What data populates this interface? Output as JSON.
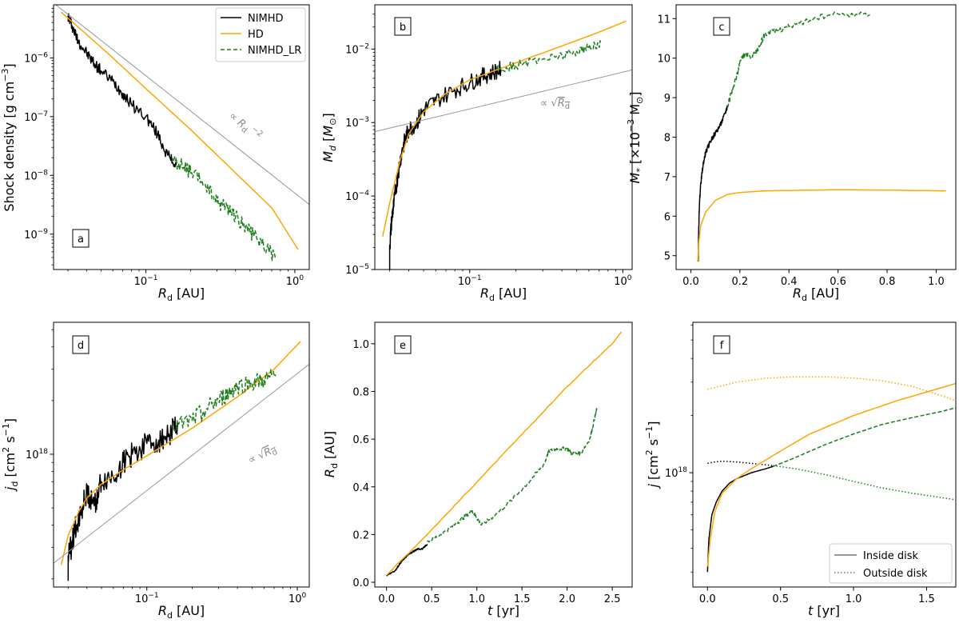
{
  "colors": {
    "nimhd": "#000000",
    "hd": "#ffa500",
    "lr": "#1a7f1a",
    "ref": "#999999"
  },
  "legend": [
    "NIMHD",
    "HD",
    "NIMHD_LR"
  ],
  "legend_f": [
    "Inside disk",
    "Outside disk"
  ],
  "chart_data": [
    {
      "panel": "a",
      "type": "line",
      "xscale": "log",
      "yscale": "log",
      "xlabel": "R_d [AU]",
      "ylabel": "Shock density [g cm^-3]",
      "xlim": [
        0.024,
        1.25
      ],
      "ylim": [
        2.5e-10,
        8e-06
      ],
      "xticks": [
        {
          "v": 0.1,
          "label": "10^-1"
        },
        {
          "v": 1,
          "label": "10^0"
        }
      ],
      "yticks": [
        {
          "v": 1e-09,
          "label": "10^-9"
        },
        {
          "v": 1e-08,
          "label": "10^-8"
        },
        {
          "v": 1e-07,
          "label": "10^-7"
        },
        {
          "v": 1e-06,
          "label": "10^-6"
        }
      ],
      "annotation": "∝ R_d^-2",
      "series": [
        {
          "name": "NIMHD",
          "style": "solid",
          "noise": 0.1,
          "x": [
            0.03,
            0.032,
            0.035,
            0.04,
            0.045,
            0.05,
            0.06,
            0.07,
            0.08,
            0.1,
            0.12,
            0.14,
            0.16
          ],
          "y": [
            5.2e-06,
            3.5e-06,
            2e-06,
            1.2e-06,
            8e-07,
            6e-07,
            4e-07,
            2.5e-07,
            1.6e-07,
            1e-07,
            5e-08,
            2.2e-08,
            1.5e-08
          ]
        },
        {
          "name": "HD",
          "style": "solid",
          "noise": 0.0,
          "x": [
            0.027,
            0.04,
            0.06,
            0.1,
            0.2,
            0.4,
            0.7,
            1.05
          ],
          "y": [
            6e-06,
            2.5e-06,
            1e-06,
            3e-07,
            6e-08,
            1.1e-08,
            2.8e-09,
            5.5e-10
          ]
        },
        {
          "name": "NIMHD_LR",
          "style": "dashed",
          "noise": 0.12,
          "x": [
            0.15,
            0.18,
            0.2,
            0.25,
            0.3,
            0.35,
            0.4,
            0.5,
            0.6,
            0.75
          ],
          "y": [
            1.8e-08,
            1.4e-08,
            1.1e-08,
            7e-09,
            3.5e-09,
            3e-09,
            2e-09,
            1.1e-09,
            7e-10,
            3.8e-10
          ]
        },
        {
          "name": "∝ R_d^-2",
          "style": "ref",
          "noise": 0.0,
          "x": [
            0.024,
            1.25
          ],
          "y": [
            8.6e-06,
            3.2e-09
          ]
        }
      ]
    },
    {
      "panel": "b",
      "type": "line",
      "xscale": "log",
      "yscale": "log",
      "xlabel": "R_d [AU]",
      "ylabel": "M_d [M_⊙]",
      "xlim": [
        0.024,
        1.15
      ],
      "ylim": [
        1e-05,
        0.04
      ],
      "xticks": [
        {
          "v": 0.1,
          "label": "10^-1"
        },
        {
          "v": 1,
          "label": "10^0"
        }
      ],
      "yticks": [
        {
          "v": 1e-05,
          "label": "10^-5"
        },
        {
          "v": 0.0001,
          "label": "10^-4"
        },
        {
          "v": 0.001,
          "label": "10^-3"
        },
        {
          "v": 0.01,
          "label": "10^-2"
        }
      ],
      "annotation": "∝ √R_d",
      "series": [
        {
          "name": "NIMHD",
          "style": "solid",
          "noise": 0.12,
          "x": [
            0.03,
            0.03,
            0.031,
            0.032,
            0.034,
            0.036,
            0.038,
            0.04,
            0.045,
            0.05,
            0.06,
            0.08,
            0.1,
            0.12,
            0.14,
            0.16
          ],
          "y": [
            1e-05,
            2e-05,
            5e-05,
            8e-05,
            0.0002,
            0.0004,
            0.0006,
            0.0008,
            0.001,
            0.0015,
            0.002,
            0.0028,
            0.0035,
            0.0042,
            0.0048,
            0.0053
          ]
        },
        {
          "name": "HD",
          "style": "solid",
          "noise": 0.0,
          "x": [
            0.027,
            0.03,
            0.035,
            0.04,
            0.05,
            0.07,
            0.1,
            0.2,
            0.4,
            0.7,
            1.05
          ],
          "y": [
            2.8e-05,
            8e-05,
            0.0003,
            0.0007,
            0.0014,
            0.0025,
            0.0038,
            0.0065,
            0.011,
            0.017,
            0.024
          ]
        },
        {
          "name": "NIMHD_LR",
          "style": "dashed",
          "noise": 0.06,
          "x": [
            0.15,
            0.2,
            0.3,
            0.4,
            0.5,
            0.6,
            0.72
          ],
          "y": [
            0.0053,
            0.006,
            0.0073,
            0.0083,
            0.0093,
            0.0105,
            0.0117
          ]
        },
        {
          "name": "∝ √R_d",
          "style": "ref",
          "noise": 0.0,
          "x": [
            0.024,
            1.15
          ],
          "y": [
            0.00075,
            0.0052
          ]
        }
      ]
    },
    {
      "panel": "c",
      "type": "line",
      "xscale": "linear",
      "yscale": "linear",
      "xlabel": "R_d [AU]",
      "ylabel": "M_* [×10^-3 M_⊙]",
      "xlim": [
        -0.06,
        1.08
      ],
      "ylim": [
        4.65,
        11.35
      ],
      "xticks": [
        {
          "v": 0,
          "label": "0.0"
        },
        {
          "v": 0.2,
          "label": "0.2"
        },
        {
          "v": 0.4,
          "label": "0.4"
        },
        {
          "v": 0.6,
          "label": "0.6"
        },
        {
          "v": 0.8,
          "label": "0.8"
        },
        {
          "v": 1.0,
          "label": "1.0"
        }
      ],
      "yticks": [
        {
          "v": 5,
          "label": "5"
        },
        {
          "v": 6,
          "label": "6"
        },
        {
          "v": 7,
          "label": "7"
        },
        {
          "v": 8,
          "label": "8"
        },
        {
          "v": 9,
          "label": "9"
        },
        {
          "v": 10,
          "label": "10"
        },
        {
          "v": 11,
          "label": "11"
        }
      ],
      "series": [
        {
          "name": "NIMHD",
          "style": "solid",
          "noise": 0.06,
          "x": [
            0.03,
            0.032,
            0.035,
            0.04,
            0.05,
            0.06,
            0.08,
            0.1,
            0.12,
            0.14,
            0.15
          ],
          "y": [
            4.85,
            5.6,
            6.3,
            6.8,
            7.3,
            7.6,
            7.9,
            8.1,
            8.3,
            8.6,
            8.8
          ]
        },
        {
          "name": "HD",
          "style": "solid",
          "noise": 0.0,
          "x": [
            0.028,
            0.032,
            0.04,
            0.06,
            0.1,
            0.15,
            0.2,
            0.3,
            0.4,
            0.6,
            0.8,
            1.04
          ],
          "y": [
            4.85,
            5.3,
            5.75,
            6.1,
            6.4,
            6.55,
            6.6,
            6.64,
            6.65,
            6.67,
            6.66,
            6.64
          ]
        },
        {
          "name": "NIMHD_LR",
          "style": "dashed",
          "noise": 0.07,
          "x": [
            0.15,
            0.17,
            0.19,
            0.2,
            0.22,
            0.25,
            0.28,
            0.3,
            0.35,
            0.4,
            0.5,
            0.6,
            0.73
          ],
          "y": [
            8.8,
            9.2,
            9.6,
            9.9,
            10.1,
            10.0,
            10.3,
            10.6,
            10.7,
            10.8,
            11.0,
            11.12,
            11.1
          ]
        }
      ]
    },
    {
      "panel": "d",
      "type": "line",
      "xscale": "log",
      "yscale": "log",
      "xlabel": "R_d [AU]",
      "ylabel": "j_d [cm^2 s^-1]",
      "xlim": [
        0.024,
        1.2
      ],
      "ylim": [
        1.8e+17,
        5.5e+18
      ],
      "xticks": [
        {
          "v": 0.1,
          "label": "10^-1"
        },
        {
          "v": 1,
          "label": "10^0"
        }
      ],
      "yticks": [
        {
          "v": 1e+18,
          "label": "10^18"
        }
      ],
      "annotation": "∝ √R_d",
      "series": [
        {
          "name": "NIMHD",
          "style": "solid",
          "noise": 0.07,
          "x": [
            0.03,
            0.03,
            0.032,
            0.034,
            0.037,
            0.04,
            0.045,
            0.05,
            0.06,
            0.07,
            0.08,
            0.1,
            0.12,
            0.14,
            0.16
          ],
          "y": [
            2e+17,
            2.6e+17,
            3.2e+17,
            4e+17,
            5e+17,
            6e+17,
            5.3e+17,
            7e+17,
            7.5e+17,
            9e+17,
            1e+18,
            1.15e+18,
            1.2e+18,
            1.3e+18,
            1.5e+18
          ]
        },
        {
          "name": "HD",
          "style": "solid",
          "noise": 0.0,
          "x": [
            0.027,
            0.03,
            0.035,
            0.04,
            0.05,
            0.07,
            0.1,
            0.2,
            0.4,
            0.7,
            1.05
          ],
          "y": [
            2.4e+17,
            3.5e+17,
            4.7e+17,
            5.7e+17,
            6.8e+17,
            8.2e+17,
            9.8e+17,
            1.4e+18,
            2.1e+18,
            3e+18,
            4.3e+18
          ]
        },
        {
          "name": "NIMHD_LR",
          "style": "dashed",
          "noise": 0.05,
          "x": [
            0.15,
            0.2,
            0.25,
            0.3,
            0.35,
            0.4,
            0.5,
            0.6,
            0.72
          ],
          "y": [
            1.4e+18,
            1.55e+18,
            1.8e+18,
            2e+18,
            2.2e+18,
            2.4e+18,
            2.5e+18,
            2.6e+18,
            2.75e+18
          ]
        },
        {
          "name": "∝ √R_d",
          "style": "ref",
          "noise": 0.0,
          "x": [
            0.024,
            1.2
          ],
          "y": [
            2.45e+17,
            3.2e+18
          ]
        }
      ]
    },
    {
      "panel": "e",
      "type": "line",
      "xscale": "linear",
      "yscale": "linear",
      "xlabel": "t [yr]",
      "ylabel": "R_d [AU]",
      "xlim": [
        -0.13,
        2.72
      ],
      "ylim": [
        -0.02,
        1.09
      ],
      "xticks": [
        {
          "v": 0,
          "label": "0.0"
        },
        {
          "v": 0.5,
          "label": "0.5"
        },
        {
          "v": 1.0,
          "label": "1.0"
        },
        {
          "v": 1.5,
          "label": "1.5"
        },
        {
          "v": 2.0,
          "label": "2.0"
        },
        {
          "v": 2.5,
          "label": "2.5"
        }
      ],
      "yticks": [
        {
          "v": 0,
          "label": "0.0"
        },
        {
          "v": 0.2,
          "label": "0.2"
        },
        {
          "v": 0.4,
          "label": "0.4"
        },
        {
          "v": 0.6,
          "label": "0.6"
        },
        {
          "v": 0.8,
          "label": "0.8"
        },
        {
          "v": 1.0,
          "label": "1.0"
        }
      ],
      "series": [
        {
          "name": "NIMHD",
          "style": "solid",
          "noise": 0.004,
          "x": [
            0.0,
            0.1,
            0.15,
            0.2,
            0.25,
            0.3,
            0.35,
            0.4,
            0.45
          ],
          "y": [
            0.03,
            0.05,
            0.08,
            0.1,
            0.12,
            0.13,
            0.14,
            0.14,
            0.16
          ]
        },
        {
          "name": "HD",
          "style": "solid",
          "noise": 0.002,
          "x": [
            0.0,
            0.5,
            1.0,
            1.5,
            2.0,
            2.3,
            2.5,
            2.6
          ],
          "y": [
            0.03,
            0.22,
            0.42,
            0.62,
            0.82,
            0.93,
            1.0,
            1.05
          ]
        },
        {
          "name": "NIMHD_LR",
          "style": "dashed",
          "noise": 0.008,
          "x": [
            0.45,
            0.6,
            0.75,
            0.85,
            0.95,
            1.0,
            1.05,
            1.2,
            1.4,
            1.6,
            1.75,
            1.8,
            1.9,
            2.0,
            2.05,
            2.15,
            2.25,
            2.3,
            2.33
          ],
          "y": [
            0.17,
            0.2,
            0.24,
            0.27,
            0.3,
            0.27,
            0.24,
            0.28,
            0.35,
            0.43,
            0.5,
            0.55,
            0.56,
            0.56,
            0.54,
            0.54,
            0.6,
            0.68,
            0.73
          ]
        }
      ]
    },
    {
      "panel": "f",
      "type": "line",
      "xscale": "linear",
      "yscale": "log",
      "xlabel": "t [yr]",
      "ylabel": "j [cm^2 s^-1]",
      "xlim": [
        -0.1,
        1.7
      ],
      "ylim": [
        2.5e+17,
        6.2e+18
      ],
      "xticks": [
        {
          "v": 0,
          "label": "0.0"
        },
        {
          "v": 0.5,
          "label": "0.5"
        },
        {
          "v": 1.0,
          "label": "1.0"
        },
        {
          "v": 1.5,
          "label": "1.5"
        }
      ],
      "yticks": [
        {
          "v": 1e+18,
          "label": "10^18"
        }
      ],
      "series": [
        {
          "name": "NIMHD inside",
          "color": "nimhd",
          "style": "solid",
          "noise": 0.0,
          "x": [
            0.0,
            0.01,
            0.03,
            0.06,
            0.1,
            0.15,
            0.2,
            0.3,
            0.4,
            0.45
          ],
          "y": [
            3e+17,
            4.5e+17,
            6e+17,
            7e+17,
            8e+17,
            8.8e+17,
            9.3e+17,
            1e+18,
            1.05e+18,
            1.08e+18
          ]
        },
        {
          "name": "NIMHD outside",
          "color": "nimhd",
          "style": "dotted",
          "noise": 0.0,
          "x": [
            0.0,
            0.05,
            0.1,
            0.2,
            0.3,
            0.4,
            0.45
          ],
          "y": [
            1.12e+18,
            1.14e+18,
            1.15e+18,
            1.14e+18,
            1.12e+18,
            1.1e+18,
            1.09e+18
          ]
        },
        {
          "name": "HD inside",
          "color": "hd",
          "style": "solid",
          "noise": 0.0,
          "x": [
            0.0,
            0.02,
            0.05,
            0.1,
            0.2,
            0.3,
            0.5,
            0.7,
            1.0,
            1.3,
            1.6,
            1.7
          ],
          "y": [
            3.2e+17,
            4.5e+17,
            6.2e+17,
            7.8e+17,
            9.3e+17,
            1.05e+18,
            1.3e+18,
            1.6e+18,
            2e+18,
            2.4e+18,
            2.8e+18,
            2.95e+18
          ]
        },
        {
          "name": "HD outside",
          "color": "hd",
          "style": "dotted",
          "noise": 0.0,
          "x": [
            0.0,
            0.2,
            0.4,
            0.6,
            0.8,
            1.0,
            1.2,
            1.4,
            1.6,
            1.7
          ],
          "y": [
            2.75e+18,
            3e+18,
            3.15e+18,
            3.2e+18,
            3.2e+18,
            3.15e+18,
            3.05e+18,
            2.85e+18,
            2.55e+18,
            2.4e+18
          ]
        },
        {
          "name": "NIMHD_LR inside",
          "color": "lr",
          "style": "dashed",
          "noise": 0.0,
          "x": [
            0.45,
            0.6,
            0.8,
            1.0,
            1.2,
            1.4,
            1.6,
            1.7
          ],
          "y": [
            1.08e+18,
            1.2e+18,
            1.4e+18,
            1.6e+18,
            1.8e+18,
            1.95e+18,
            2.1e+18,
            2.2e+18
          ]
        },
        {
          "name": "NIMHD_LR outside",
          "color": "lr",
          "style": "dotted",
          "noise": 0.0,
          "x": [
            0.45,
            0.6,
            0.8,
            1.0,
            1.2,
            1.4,
            1.6,
            1.7
          ],
          "y": [
            1.09e+18,
            1.05e+18,
            9.8e+17,
            9e+17,
            8.3e+17,
            7.8e+17,
            7.4e+17,
            7.2e+17
          ]
        }
      ]
    }
  ]
}
